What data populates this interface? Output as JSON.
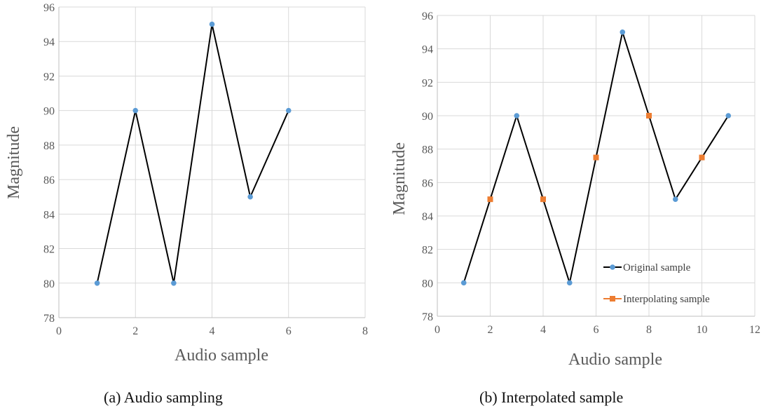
{
  "colors": {
    "line": "#000000",
    "original_marker": "#5b9bd5",
    "interpolated_marker": "#ed7d31",
    "grid": "#d9d9d9",
    "axis": "#bfbfbf",
    "tick_text": "#595959"
  },
  "captions": {
    "a": "(a)  Audio sampling",
    "b": "(b)  Interpolated sample"
  },
  "chart_data": [
    {
      "type": "line",
      "xlabel": "Audio sample",
      "ylabel": "Magnitude",
      "xlim": [
        0,
        8
      ],
      "ylim": [
        78,
        96
      ],
      "xticks": [
        0,
        2,
        4,
        6,
        8
      ],
      "yticks": [
        78,
        80,
        82,
        84,
        86,
        88,
        90,
        92,
        94,
        96
      ],
      "grid": true,
      "series": [
        {
          "marker": "circle",
          "x": [
            1,
            2,
            3,
            4,
            5,
            6
          ],
          "y": [
            80,
            90,
            80,
            95,
            85,
            90
          ]
        }
      ]
    },
    {
      "type": "line",
      "xlabel": "Audio sample",
      "ylabel": "Magnitude",
      "xlim": [
        0,
        12
      ],
      "ylim": [
        78,
        96
      ],
      "xticks": [
        0,
        2,
        4,
        6,
        8,
        10,
        12
      ],
      "yticks": [
        78,
        80,
        82,
        84,
        86,
        88,
        90,
        92,
        94,
        96
      ],
      "grid": true,
      "legend_position": "bottom-right",
      "line": {
        "x": [
          1,
          2,
          3,
          4,
          5,
          6,
          7,
          8,
          9,
          10,
          11
        ],
        "y": [
          80,
          85,
          90,
          85,
          80,
          87.5,
          95,
          90,
          85,
          87.5,
          90
        ]
      },
      "series": [
        {
          "name": "Original sample",
          "marker": "circle",
          "x": [
            1,
            3,
            5,
            7,
            9,
            11
          ],
          "y": [
            80,
            90,
            80,
            95,
            85,
            90
          ]
        },
        {
          "name": "Interpolating sample",
          "marker": "square",
          "x": [
            2,
            4,
            6,
            8,
            10
          ],
          "y": [
            85,
            85,
            87.5,
            90,
            87.5
          ]
        }
      ]
    }
  ]
}
